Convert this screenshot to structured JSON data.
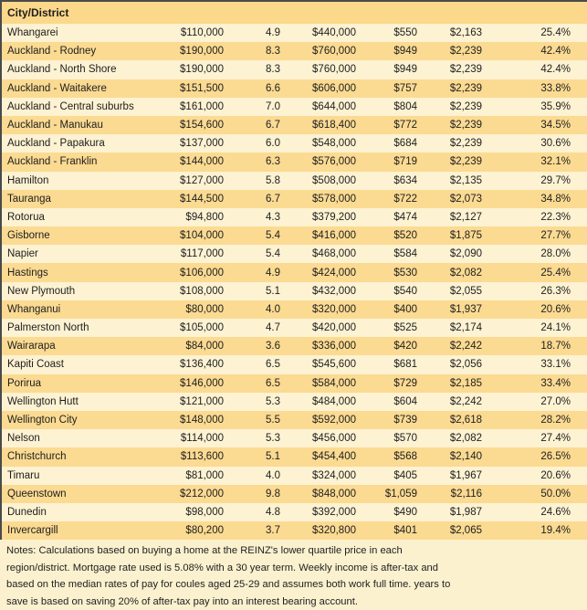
{
  "chart_data": {
    "type": "table",
    "header": "City/District",
    "visible_column_headers": [
      "City/District"
    ],
    "rows": [
      [
        "Whangarei",
        "$110,000",
        "4.9",
        "$440,000",
        "$550",
        "$2,163",
        "25.4%"
      ],
      [
        "Auckland - Rodney",
        "$190,000",
        "8.3",
        "$760,000",
        "$949",
        "$2,239",
        "42.4%"
      ],
      [
        "Auckland - North Shore",
        "$190,000",
        "8.3",
        "$760,000",
        "$949",
        "$2,239",
        "42.4%"
      ],
      [
        "Auckland - Waitakere",
        "$151,500",
        "6.6",
        "$606,000",
        "$757",
        "$2,239",
        "33.8%"
      ],
      [
        "Auckland - Central suburbs",
        "$161,000",
        "7.0",
        "$644,000",
        "$804",
        "$2,239",
        "35.9%"
      ],
      [
        "Auckland - Manukau",
        "$154,600",
        "6.7",
        "$618,400",
        "$772",
        "$2,239",
        "34.5%"
      ],
      [
        "Auckland - Papakura",
        "$137,000",
        "6.0",
        "$548,000",
        "$684",
        "$2,239",
        "30.6%"
      ],
      [
        "Auckland - Franklin",
        "$144,000",
        "6.3",
        "$576,000",
        "$719",
        "$2,239",
        "32.1%"
      ],
      [
        "Hamilton",
        "$127,000",
        "5.8",
        "$508,000",
        "$634",
        "$2,135",
        "29.7%"
      ],
      [
        "Tauranga",
        "$144,500",
        "6.7",
        "$578,000",
        "$722",
        "$2,073",
        "34.8%"
      ],
      [
        "Rotorua",
        "$94,800",
        "4.3",
        "$379,200",
        "$474",
        "$2,127",
        "22.3%"
      ],
      [
        "Gisborne",
        "$104,000",
        "5.4",
        "$416,000",
        "$520",
        "$1,875",
        "27.7%"
      ],
      [
        "Napier",
        "$117,000",
        "5.4",
        "$468,000",
        "$584",
        "$2,090",
        "28.0%"
      ],
      [
        "Hastings",
        "$106,000",
        "4.9",
        "$424,000",
        "$530",
        "$2,082",
        "25.4%"
      ],
      [
        "New Plymouth",
        "$108,000",
        "5.1",
        "$432,000",
        "$540",
        "$2,055",
        "26.3%"
      ],
      [
        "Whanganui",
        "$80,000",
        "4.0",
        "$320,000",
        "$400",
        "$1,937",
        "20.6%"
      ],
      [
        "Palmerston North",
        "$105,000",
        "4.7",
        "$420,000",
        "$525",
        "$2,174",
        "24.1%"
      ],
      [
        "Wairarapa",
        "$84,000",
        "3.6",
        "$336,000",
        "$420",
        "$2,242",
        "18.7%"
      ],
      [
        "Kapiti Coast",
        "$136,400",
        "6.5",
        "$545,600",
        "$681",
        "$2,056",
        "33.1%"
      ],
      [
        "Porirua",
        "$146,000",
        "6.5",
        "$584,000",
        "$729",
        "$2,185",
        "33.4%"
      ],
      [
        "Wellington Hutt",
        "$121,000",
        "5.3",
        "$484,000",
        "$604",
        "$2,242",
        "27.0%"
      ],
      [
        "Wellington City",
        "$148,000",
        "5.5",
        "$592,000",
        "$739",
        "$2,618",
        "28.2%"
      ],
      [
        "Nelson",
        "$114,000",
        "5.3",
        "$456,000",
        "$570",
        "$2,082",
        "27.4%"
      ],
      [
        "Christchurch",
        "$113,600",
        "5.1",
        "$454,400",
        "$568",
        "$2,140",
        "26.5%"
      ],
      [
        "Timaru",
        "$81,000",
        "4.0",
        "$324,000",
        "$405",
        "$1,967",
        "20.6%"
      ],
      [
        "Queenstown",
        "$212,000",
        "9.8",
        "$848,000",
        "$1,059",
        "$2,116",
        "50.0%"
      ],
      [
        "Dunedin",
        "$98,000",
        "4.8",
        "$392,000",
        "$490",
        "$1,987",
        "24.6%"
      ],
      [
        "Invercargill",
        "$80,200",
        "3.7",
        "$320,800",
        "$401",
        "$2,065",
        "19.4%"
      ]
    ]
  },
  "notes": "Notes: Calculations based on buying a home at the REINZ's lower quartile price in each region/district. Mortgage rate used is 5.08% with a 30 year term. Weekly income is after-tax and based on the median rates of pay for coules aged 25-29 and assumes both work full time. years to save is based on saving 20% of after-tax pay into an interest bearing account.",
  "colors": {
    "row_light": "#FDF2D2",
    "row_dark": "#FBDA92",
    "header_bg": "#FBD88A",
    "notes_bg": "#FCF1CF",
    "border": "#4A4A4A",
    "text": "#1E1E1E"
  }
}
